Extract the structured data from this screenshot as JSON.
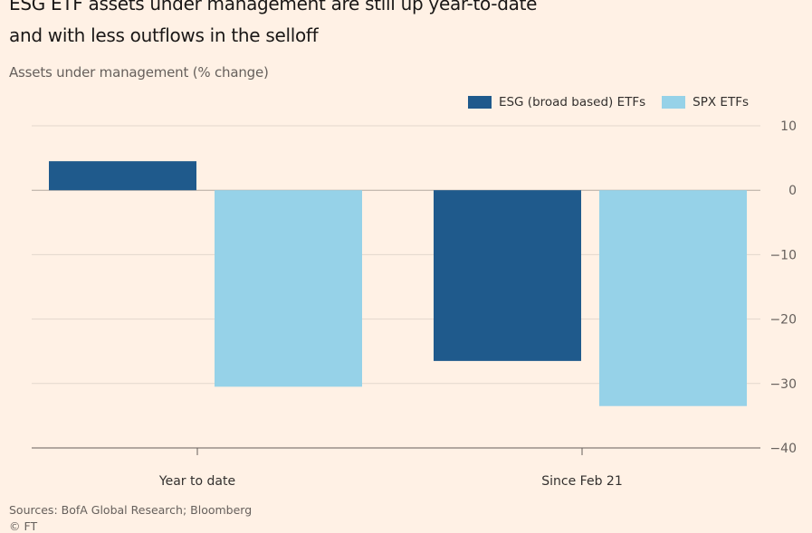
{
  "title_line1": "ESG ETF assets under management are still up year-to-date",
  "title_line2": "and with less outflows in the selloff",
  "source": "Sources: BofA Global Research; Bloomberg",
  "copyright": "© FT",
  "colors": {
    "background": "#fff1e5",
    "esg": "#1f5a8c",
    "spx": "#96d2e8"
  },
  "chart_data": {
    "type": "bar",
    "title": "ESG ETF assets under management are still up year-to-date and with less outflows in the selloff",
    "ylabel": "Assets under management (% change)",
    "categories": [
      "Year to date",
      "Since Feb 21"
    ],
    "series": [
      {
        "name": "ESG (broad based) ETFs",
        "values": [
          4.5,
          -26.5
        ]
      },
      {
        "name": "SPX ETFs",
        "values": [
          -30.5,
          -33.5
        ]
      }
    ],
    "ylim": [
      -40,
      10
    ],
    "yticks": [
      10,
      0,
      -10,
      -20,
      -30,
      -40
    ],
    "grid": true,
    "legend": "top-right",
    "y_axis_side": "right"
  }
}
